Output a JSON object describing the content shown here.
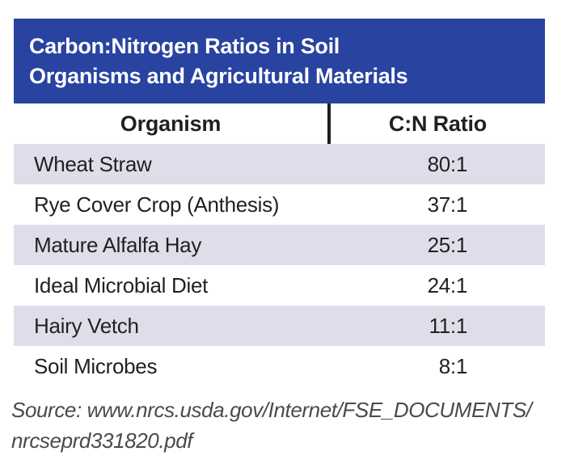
{
  "banner": {
    "title_full": "Carbon:Nitrogen Ratios in Soil Organisms and Agricultural Materials",
    "line1": "Carbon:Nitrogen Ratios in Soil",
    "line2": "Organisms and Agricultural Materials"
  },
  "colors": {
    "banner_blue": "#2843a0",
    "banner_text": "#ffffff",
    "row_shade_lavender": "#dedeeb",
    "text_black": "#231f20",
    "source_gray": "#4a4a4a"
  },
  "chart_data": {
    "type": "table",
    "title": "Carbon:Nitrogen Ratios in Soil Organisms and Agricultural Materials",
    "columns": [
      "Organism",
      "C:N Ratio"
    ],
    "rows": [
      {
        "organism": "Wheat Straw",
        "ratio": "80:1",
        "ratio_value": 80
      },
      {
        "organism": "Rye Cover Crop (Anthesis)",
        "ratio": "37:1",
        "ratio_value": 37
      },
      {
        "organism": "Mature Alfalfa Hay",
        "ratio": "25:1",
        "ratio_value": 25
      },
      {
        "organism": "Ideal Microbial Diet",
        "ratio": "24:1",
        "ratio_value": 24
      },
      {
        "organism": "Hairy Vetch",
        "ratio": "11:1",
        "ratio_value": 11
      },
      {
        "organism": "Soil Microbes",
        "ratio": "8:1",
        "ratio_value": 8
      }
    ],
    "row_shading": [
      "shaded",
      "plain",
      "shaded",
      "plain",
      "shaded",
      "plain"
    ],
    "source": {
      "line1": "Source: www.nrcs.usda.gov/Internet/FSE_DOCUMENTS/",
      "line2": "nrcseprd331820.pdf",
      "full": "Source: www.nrcs.usda.gov/Internet/FSE_DOCUMENTS/nrcseprd331820.pdf"
    }
  }
}
